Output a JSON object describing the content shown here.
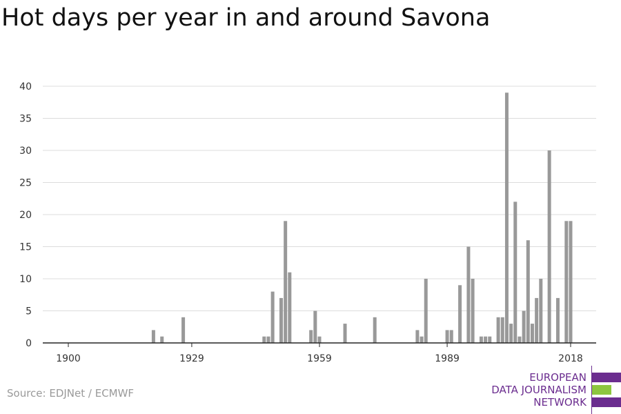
{
  "title": "Hot days per year in and around Savona",
  "source": "Source: EDJNet / ECMWF",
  "logo": {
    "lines": [
      "EUROPEAN",
      "DATA JOURNALISM",
      "NETWORK"
    ],
    "colors": {
      "purple": "#6b2d8f",
      "green": "#8dc63f"
    }
  },
  "chart_data": {
    "type": "bar",
    "title": "Hot days per year in and around Savona",
    "xlabel": "",
    "ylabel": "",
    "bar_color": "#999999",
    "grid": true,
    "ylim": [
      0,
      40
    ],
    "yticks": [
      0,
      5,
      10,
      15,
      20,
      25,
      30,
      35,
      40
    ],
    "xlim": [
      1894,
      2024
    ],
    "xticks": [
      1900,
      1929,
      1959,
      1989,
      2018
    ],
    "x": [
      1920,
      1922,
      1927,
      1946,
      1947,
      1948,
      1950,
      1951,
      1952,
      1957,
      1958,
      1959,
      1965,
      1972,
      1982,
      1983,
      1984,
      1989,
      1990,
      1992,
      1994,
      1995,
      1997,
      1998,
      1999,
      2001,
      2002,
      2003,
      2004,
      2005,
      2006,
      2007,
      2008,
      2009,
      2010,
      2011,
      2013,
      2015,
      2017,
      2018
    ],
    "values": [
      2,
      1,
      4,
      1,
      1,
      8,
      7,
      19,
      11,
      2,
      5,
      1,
      3,
      4,
      2,
      1,
      10,
      2,
      2,
      9,
      15,
      10,
      1,
      1,
      1,
      4,
      4,
      39,
      3,
      22,
      1,
      5,
      16,
      3,
      7,
      10,
      30,
      7,
      19,
      19
    ]
  }
}
